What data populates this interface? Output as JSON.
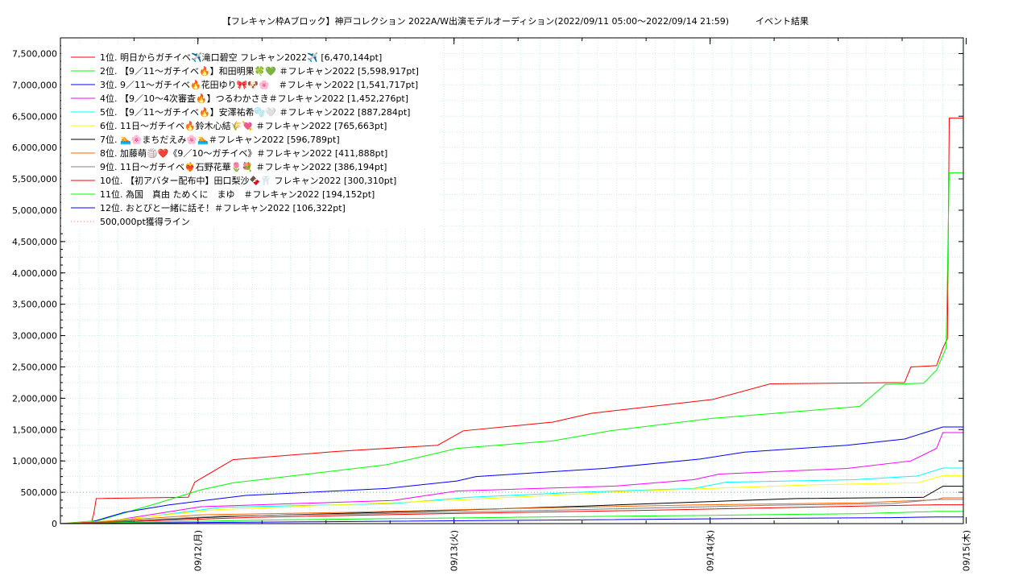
{
  "chart_data": {
    "type": "line",
    "title": "【フレキャン枠Aブロック】神戸コレクション 2022A/W出演モデルオーディション(2022/09/11 05:00〜2022/09/14 21:59)　　　イベント結果",
    "xlabel": "",
    "ylabel": "",
    "x_range": [
      "2022-09-11 05:00",
      "2022-09-15 00:00"
    ],
    "x_ticks": [
      "09/12(月)",
      "09/13(火)",
      "09/14(水)",
      "09/15(木)"
    ],
    "ylim": [
      0,
      7750000
    ],
    "y_ticks": [
      "0",
      "500,000",
      "1,000,000",
      "1,500,000",
      "2,000,000",
      "2,500,000",
      "3,000,000",
      "3,500,000",
      "4,000,000",
      "4,500,000",
      "5,000,000",
      "5,500,000",
      "6,000,000",
      "6,500,000",
      "7,000,000",
      "7,500,000"
    ],
    "y_tick_values": [
      0,
      500000,
      1000000,
      1500000,
      2000000,
      2500000,
      3000000,
      3500000,
      4000000,
      4500000,
      5000000,
      5500000,
      6000000,
      6500000,
      7000000,
      7500000
    ],
    "grid": true,
    "legend_position": "top-left",
    "series": [
      {
        "name": " 1位. 明日からガチイベ✈️滝口碧空 フレキャン2022✈️ [6,470,144pt]",
        "color": "#ff0000",
        "points": [
          [
            0.0,
            0
          ],
          [
            4.8,
            0
          ],
          [
            5.2,
            150000
          ],
          [
            5.6,
            400000
          ],
          [
            20,
            420000
          ],
          [
            21,
            660000
          ],
          [
            27,
            1020000
          ],
          [
            43,
            1150000
          ],
          [
            59,
            1250000
          ],
          [
            63,
            1480000
          ],
          [
            77,
            1620000
          ],
          [
            83,
            1760000
          ],
          [
            102,
            1980000
          ],
          [
            111,
            2230000
          ],
          [
            132,
            2250000
          ],
          [
            133,
            2500000
          ],
          [
            137,
            2520000
          ],
          [
            138,
            2800000
          ],
          [
            138.7,
            2950000
          ],
          [
            139,
            6470144
          ],
          [
            141.2,
            6470144
          ]
        ]
      },
      {
        "name": "2位. 【9／11〜ガチイベ🔥】和田明果🍀💚 ＃フレキャン2022 [5,598,917pt]",
        "color": "#00ff00",
        "points": [
          [
            0.0,
            0
          ],
          [
            6,
            50000
          ],
          [
            15,
            320000
          ],
          [
            22,
            540000
          ],
          [
            27,
            650000
          ],
          [
            51,
            940000
          ],
          [
            57,
            1080000
          ],
          [
            62,
            1200000
          ],
          [
            77,
            1320000
          ],
          [
            86,
            1480000
          ],
          [
            102,
            1680000
          ],
          [
            125,
            1870000
          ],
          [
            129,
            2220000
          ],
          [
            135,
            2240000
          ],
          [
            137,
            2450000
          ],
          [
            138.5,
            2800000
          ],
          [
            139,
            5598917
          ],
          [
            141.2,
            5598917
          ]
        ]
      },
      {
        "name": "3位. 9／11〜ガチイベ🔥花田ゆり🎀🐶🌸　＃フレキャン2022 [1,541,717pt]",
        "color": "#0000ff",
        "points": [
          [
            0.0,
            0
          ],
          [
            4,
            0
          ],
          [
            10,
            180000
          ],
          [
            17,
            300000
          ],
          [
            29,
            450000
          ],
          [
            51,
            560000
          ],
          [
            62,
            680000
          ],
          [
            65,
            750000
          ],
          [
            85,
            880000
          ],
          [
            100,
            1030000
          ],
          [
            107,
            1140000
          ],
          [
            123,
            1250000
          ],
          [
            132,
            1350000
          ],
          [
            138,
            1541717
          ],
          [
            141.2,
            1541717
          ]
        ]
      },
      {
        "name": "4位. 【9／10〜4次審査🔥】つるわかさき＃フレキャン2022 [1,452,276pt]",
        "color": "#ff00ff",
        "points": [
          [
            0.0,
            0
          ],
          [
            7,
            30000
          ],
          [
            22,
            270000
          ],
          [
            52,
            370000
          ],
          [
            62,
            520000
          ],
          [
            87,
            600000
          ],
          [
            99,
            700000
          ],
          [
            103,
            790000
          ],
          [
            123,
            880000
          ],
          [
            133,
            1000000
          ],
          [
            137,
            1200000
          ],
          [
            138,
            1452276
          ],
          [
            141.2,
            1452276
          ]
        ]
      },
      {
        "name": "5位. 【9／11〜ガチイベ🔥】安澤祐希🫧🤍 ＃フレキャン2022 [887,284pt]",
        "color": "#00ffff",
        "points": [
          [
            0.0,
            0
          ],
          [
            7,
            20000
          ],
          [
            25,
            260000
          ],
          [
            52,
            320000
          ],
          [
            64,
            420000
          ],
          [
            81,
            500000
          ],
          [
            99,
            560000
          ],
          [
            104,
            660000
          ],
          [
            124,
            700000
          ],
          [
            134,
            760000
          ],
          [
            138,
            887284
          ],
          [
            141.2,
            887284
          ]
        ]
      },
      {
        "name": "6位. 11日〜ガチイベ🔥鈴木心結🌾💘 ＃フレキャン2022 [765,663pt]",
        "color": "#ffff00",
        "points": [
          [
            0.0,
            0
          ],
          [
            7,
            40000
          ],
          [
            24,
            220000
          ],
          [
            63,
            380000
          ],
          [
            90,
            520000
          ],
          [
            118,
            620000
          ],
          [
            134,
            650000
          ],
          [
            138,
            765663
          ],
          [
            141.2,
            765663
          ]
        ]
      },
      {
        "name": "7位. 🏊🌸まちだえみ🌸🏊＃フレキャン2022 [596,789pt]",
        "color": "#000000",
        "points": [
          [
            0.0,
            0
          ],
          [
            5,
            20000
          ],
          [
            28,
            120000
          ],
          [
            58,
            200000
          ],
          [
            82,
            280000
          ],
          [
            115,
            400000
          ],
          [
            135,
            420000
          ],
          [
            138,
            596789
          ],
          [
            141.2,
            596789
          ]
        ]
      },
      {
        "name": "8位. 加藤萌🏐❤️《9／10〜ガチイベ》＃フレキャン2022 [411,888pt]",
        "color": "#ff6600",
        "points": [
          [
            0.0,
            0
          ],
          [
            6,
            30000
          ],
          [
            22,
            140000
          ],
          [
            45,
            180000
          ],
          [
            70,
            240000
          ],
          [
            100,
            300000
          ],
          [
            125,
            330000
          ],
          [
            137,
            380000
          ],
          [
            138,
            411888
          ],
          [
            141.2,
            411888
          ]
        ]
      },
      {
        "name": "9位. 11日〜ガチイベ❤️‍🔥石野花華🌷💐 ＃フレキャン2022 [386,194pt]",
        "color": "#808080",
        "points": [
          [
            0.0,
            0
          ],
          [
            6,
            20000
          ],
          [
            25,
            120000
          ],
          [
            50,
            160000
          ],
          [
            80,
            220000
          ],
          [
            110,
            290000
          ],
          [
            130,
            320000
          ],
          [
            137,
            386194
          ],
          [
            141.2,
            386194
          ]
        ]
      },
      {
        "name": "10位. 【初アバター配布中】田口梨沙🍫🦷 フレキャン2022 [300,310pt]",
        "color": "#ff0000",
        "points": [
          [
            0.0,
            0
          ],
          [
            6,
            15000
          ],
          [
            30,
            100000
          ],
          [
            60,
            160000
          ],
          [
            90,
            210000
          ],
          [
            120,
            270000
          ],
          [
            137,
            300310
          ],
          [
            141.2,
            300310
          ]
        ]
      },
      {
        "name": "11位. 為国　真由 ためくに　まゆ　＃フレキャン2022 [194,152pt]",
        "color": "#00ff00",
        "points": [
          [
            0.0,
            0
          ],
          [
            6,
            10000
          ],
          [
            35,
            60000
          ],
          [
            70,
            100000
          ],
          [
            100,
            130000
          ],
          [
            125,
            160000
          ],
          [
            137,
            194152
          ],
          [
            141.2,
            194152
          ]
        ]
      },
      {
        "name": "12位. おとびと一緒に話そ！＃フレキャン2022 [106,322pt]",
        "color": "#0000ff",
        "points": [
          [
            0.0,
            0
          ],
          [
            6,
            5000
          ],
          [
            40,
            30000
          ],
          [
            75,
            55000
          ],
          [
            105,
            80000
          ],
          [
            130,
            95000
          ],
          [
            137,
            106322
          ],
          [
            141.2,
            106322
          ]
        ]
      },
      {
        "name": "500,000pt獲得ライン",
        "color": "#ff8080",
        "dashed": true,
        "points": [
          [
            0.0,
            500000
          ],
          [
            141.2,
            500000
          ]
        ]
      }
    ]
  }
}
